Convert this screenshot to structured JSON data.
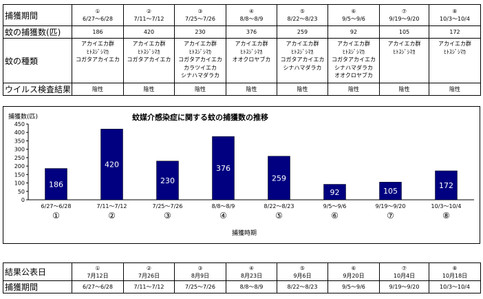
{
  "top_table": {
    "row_labels": {
      "period": "捕獲期間",
      "count": "蚊の捕獲数(匹)",
      "species": "蚊の種類",
      "virus": "ウイルス検査結果"
    },
    "columns": [
      {
        "num": "①",
        "period": "6/27～6/28",
        "count": "186",
        "species": [
          "アカイエカ群",
          "ﾋﾄｽｼﾞｼﾏｶ",
          "コガタアカイエカ"
        ],
        "virus": "陰性"
      },
      {
        "num": "②",
        "period": "7/11～7/12",
        "count": "420",
        "species": [
          "アカイエカ群",
          "ﾋﾄｽｼﾞｼﾏｶ",
          "コガタアカイエカ"
        ],
        "virus": "陰性"
      },
      {
        "num": "③",
        "period": "7/25～7/26",
        "count": "230",
        "species": [
          "アカイエカ群",
          "ﾋﾄｽｼﾞｼﾏｶ",
          "コガタアカイエカ",
          "カラツイエカ",
          "シナハマダラカ"
        ],
        "virus": "陰性"
      },
      {
        "num": "④",
        "period": "8/8～8/9",
        "count": "376",
        "species": [
          "アカイエカ群",
          "ﾋﾄｽｼﾞｼﾏｶ",
          "オオクロヤブカ"
        ],
        "virus": "陰性"
      },
      {
        "num": "⑤",
        "period": "8/22～8/23",
        "count": "259",
        "species": [
          "アカイエカ群",
          "ﾋﾄｽｼﾞｼﾏｶ",
          "コガタアカイエカ",
          "シナハマダラカ"
        ],
        "virus": "陰性"
      },
      {
        "num": "⑥",
        "period": "9/5～9/6",
        "count": "92",
        "species": [
          "アカイエカ群",
          "ﾋﾄｽｼﾞｼﾏｶ",
          "コガタアカイエカ",
          "シナハマダラカ",
          "オオクロヤブカ"
        ],
        "virus": "陰性"
      },
      {
        "num": "⑦",
        "period": "9/19～9/20",
        "count": "105",
        "species": [
          "アカイエカ群",
          "ﾋﾄｽｼﾞｼﾏｶ"
        ],
        "virus": "陰性"
      },
      {
        "num": "⑧",
        "period": "10/3～10/4",
        "count": "172",
        "species": [
          "アカイエカ群",
          "ﾋﾄｽｼﾞｼﾏｶ"
        ],
        "virus": "陰性"
      }
    ]
  },
  "chart_data": {
    "type": "bar",
    "title": "蚊媒介感染症に関する蚊の捕獲数の推移",
    "ylabel": "捕獲数(匹)",
    "xlabel": "捕獲時期",
    "categories": [
      "6/27～6/28",
      "7/11～7/12",
      "7/25～7/26",
      "8/8～8/9",
      "8/22～8/23",
      "9/5～9/6",
      "9/19～9/20",
      "10/3～10/4"
    ],
    "category_numbers": [
      "①",
      "②",
      "③",
      "④",
      "⑤",
      "⑥",
      "⑦",
      "⑧"
    ],
    "values": [
      186,
      420,
      230,
      376,
      259,
      92,
      105,
      172
    ],
    "data_labels": [
      "186",
      "420",
      "230",
      "376",
      "259",
      "92",
      "105",
      "172"
    ],
    "ylim": [
      0,
      450
    ],
    "yticks": [
      "0",
      "50",
      "100",
      "150",
      "200",
      "250",
      "300",
      "350",
      "400",
      "450"
    ],
    "bar_color": "#000080",
    "grid": false
  },
  "bottom_table": {
    "row_labels": {
      "publish": "結果公表日",
      "period": "捕獲期間"
    },
    "columns": [
      {
        "num": "①",
        "publish": "7月12日",
        "period": "6/27～6/28"
      },
      {
        "num": "②",
        "publish": "7月26日",
        "period": "7/11～7/12"
      },
      {
        "num": "③",
        "publish": "8月9日",
        "period": "7/25～7/26"
      },
      {
        "num": "④",
        "publish": "8月23日",
        "period": "8/8～8/9"
      },
      {
        "num": "⑤",
        "publish": "9月6日",
        "period": "8/22～8/23"
      },
      {
        "num": "⑥",
        "publish": "9月20日",
        "period": "9/5～9/6"
      },
      {
        "num": "⑦",
        "publish": "10月4日",
        "period": "9/19～9/20"
      },
      {
        "num": "⑧",
        "publish": "10月18日",
        "period": "10/3～10/4"
      }
    ]
  }
}
